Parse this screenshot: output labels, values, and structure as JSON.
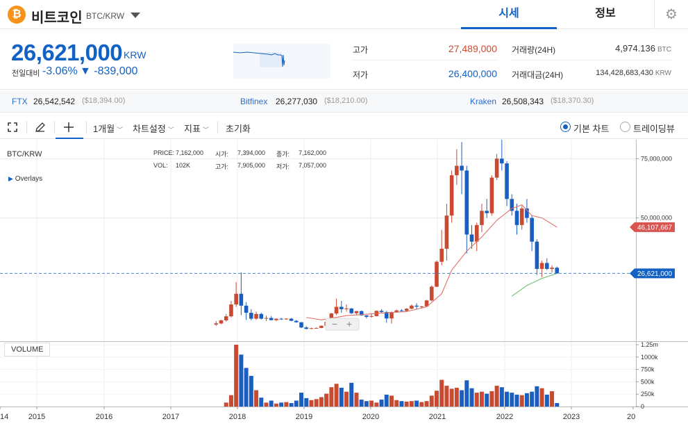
{
  "header": {
    "coin_symbol": "₿",
    "coin_name": "비트코인",
    "pair": "BTC/KRW",
    "tabs": [
      {
        "label": "시세",
        "active": true
      },
      {
        "label": "정보",
        "active": false
      }
    ],
    "settings_icon": "gear-icon"
  },
  "summary": {
    "price": "26,621,000",
    "unit": "KRW",
    "prev_label": "전일대비",
    "change_pct": "-3.06%",
    "change_amt": "▼ -839,000",
    "high_label": "고가",
    "high_value": "27,489,000",
    "low_label": "저가",
    "low_value": "26,400,000",
    "volume_label": "거래량(24H)",
    "volume_value": "4,974.136",
    "volume_unit": "BTC",
    "amount_label": "거래대금(24H)",
    "amount_value": "134,428,683,430",
    "amount_unit": "KRW",
    "colors": {
      "up": "#c84a31",
      "down": "#1261c4"
    }
  },
  "exchanges": [
    {
      "name": "FTX",
      "krw": "26,542,542",
      "usd": "($18,394.00)"
    },
    {
      "name": "Bitfinex",
      "krw": "26,277,030",
      "usd": "($18,210.00)"
    },
    {
      "name": "Kraken",
      "krw": "26,508,343",
      "usd": "($18,370.30)"
    }
  ],
  "toolbar": {
    "fullscreen_icon": "fullscreen-icon",
    "draw_icon": "pencil-icon",
    "crosshair_icon": "crosshair-icon",
    "interval": "1개월",
    "chart_settings": "차트설정",
    "indicators": "지표",
    "reset": "초기화",
    "chart_types": [
      {
        "label": "기본 차트",
        "selected": true
      },
      {
        "label": "트레이딩뷰",
        "selected": false
      }
    ]
  },
  "chart_info": {
    "symbol": "BTC/KRW",
    "overlays": "Overlays",
    "price_label": "PRICE:",
    "price": "7,162,000",
    "open_label": "시가:",
    "open": "7,394,000",
    "close_label": "종가:",
    "close": "7,162,000",
    "vol_label": "VOL:",
    "vol": "102K",
    "high_label": "고가:",
    "high": "7,905,000",
    "low_label": "저가:",
    "low": "7,057,000",
    "volume_panel": "VOLUME",
    "current_tag": "26,621,000",
    "ma_tag": "46,107,667"
  },
  "chart_data": {
    "type": "candlestick",
    "title": "BTC/KRW",
    "interval": "1개월",
    "x_ticks": [
      "14",
      "2015",
      "2016",
      "2017",
      "2018",
      "2019",
      "2020",
      "2021",
      "2022",
      "2023",
      "20"
    ],
    "y_ticks": [
      "75,000,000",
      "50,000,000"
    ],
    "vol_ticks": [
      "1.25m",
      "1000k",
      "750k",
      "500k",
      "250k",
      "0"
    ],
    "ylim": [
      -2000000,
      83000000
    ],
    "vol_ylim": [
      0,
      1250000
    ],
    "candles": [
      {
        "o": 5000000,
        "h": 6500000,
        "l": 4500000,
        "c": 5500000,
        "v": 0
      },
      {
        "o": 5500000,
        "h": 7000000,
        "l": 5200000,
        "c": 6800000,
        "v": 0
      },
      {
        "o": 6800000,
        "h": 9500000,
        "l": 6300000,
        "c": 8500000,
        "v": 80000
      },
      {
        "o": 8500000,
        "h": 15000000,
        "l": 8000000,
        "c": 13500000,
        "v": 230000
      },
      {
        "o": 13500000,
        "h": 23000000,
        "l": 12500000,
        "c": 18000000,
        "v": 1250000
      },
      {
        "o": 18000000,
        "h": 27000000,
        "l": 9000000,
        "c": 13000000,
        "v": 1050000
      },
      {
        "o": 13000000,
        "h": 14500000,
        "l": 7000000,
        "c": 10000000,
        "v": 780000
      },
      {
        "o": 10000000,
        "h": 11500000,
        "l": 6800000,
        "c": 7500000,
        "v": 620000
      },
      {
        "o": 7500000,
        "h": 10500000,
        "l": 7000000,
        "c": 9500000,
        "v": 330000
      },
      {
        "o": 9500000,
        "h": 10000000,
        "l": 7200000,
        "c": 7500000,
        "v": 180000
      },
      {
        "o": 7500000,
        "h": 8800000,
        "l": 6500000,
        "c": 7800000,
        "v": 80000
      },
      {
        "o": 7800000,
        "h": 8600000,
        "l": 6800000,
        "c": 6900000,
        "v": 120000
      },
      {
        "o": 6900000,
        "h": 7600000,
        "l": 6500000,
        "c": 7500000,
        "v": 60000
      },
      {
        "o": 7500000,
        "h": 7800000,
        "l": 7000000,
        "c": 7200000,
        "v": 80000
      },
      {
        "o": 7200000,
        "h": 7700000,
        "l": 7100000,
        "c": 7500000,
        "v": 90000
      },
      {
        "o": 7500000,
        "h": 7800000,
        "l": 6500000,
        "c": 6600000,
        "v": 70000
      },
      {
        "o": 6600000,
        "h": 6900000,
        "l": 5800000,
        "c": 6000000,
        "v": 120000
      },
      {
        "o": 6000000,
        "h": 6100000,
        "l": 3500000,
        "c": 3800000,
        "v": 280000
      },
      {
        "o": 3800000,
        "h": 4300000,
        "l": 3000000,
        "c": 3200000,
        "v": 170000
      },
      {
        "o": 3200000,
        "h": 3700000,
        "l": 3100000,
        "c": 3500000,
        "v": 130000
      },
      {
        "o": 3500000,
        "h": 3800000,
        "l": 3400000,
        "c": 3600000,
        "v": 150000
      },
      {
        "o": 3600000,
        "h": 4700000,
        "l": 3500000,
        "c": 4500000,
        "v": 190000
      },
      {
        "o": 4500000,
        "h": 6500000,
        "l": 4300000,
        "c": 6200000,
        "v": 260000
      },
      {
        "o": 6200000,
        "h": 10000000,
        "l": 6000000,
        "c": 9700000,
        "v": 390000
      },
      {
        "o": 9700000,
        "h": 16000000,
        "l": 9000000,
        "c": 12500000,
        "v": 460000
      },
      {
        "o": 12500000,
        "h": 15000000,
        "l": 10000000,
        "c": 11500000,
        "v": 380000
      },
      {
        "o": 11500000,
        "h": 13500000,
        "l": 10500000,
        "c": 11800000,
        "v": 300000
      },
      {
        "o": 11800000,
        "h": 12000000,
        "l": 9500000,
        "c": 9800000,
        "v": 480000
      },
      {
        "o": 9800000,
        "h": 10800000,
        "l": 9000000,
        "c": 10700000,
        "v": 280000
      },
      {
        "o": 10700000,
        "h": 10900000,
        "l": 8800000,
        "c": 8900000,
        "v": 140000
      },
      {
        "o": 8900000,
        "h": 9000000,
        "l": 7600000,
        "c": 8300000,
        "v": 110000
      },
      {
        "o": 8300000,
        "h": 9800000,
        "l": 8000000,
        "c": 8600000,
        "v": 120000
      },
      {
        "o": 8600000,
        "h": 11000000,
        "l": 8400000,
        "c": 10800000,
        "v": 80000
      },
      {
        "o": 10800000,
        "h": 11500000,
        "l": 9800000,
        "c": 10300000,
        "v": 140000
      },
      {
        "o": 10300000,
        "h": 10800000,
        "l": 5800000,
        "c": 7600000,
        "v": 240000
      },
      {
        "o": 7600000,
        "h": 10500000,
        "l": 5400000,
        "c": 10300000,
        "v": 220000
      },
      {
        "o": 10300000,
        "h": 11300000,
        "l": 10000000,
        "c": 11000000,
        "v": 130000
      },
      {
        "o": 11000000,
        "h": 11500000,
        "l": 10500000,
        "c": 10800000,
        "v": 110000
      },
      {
        "o": 10800000,
        "h": 12000000,
        "l": 10500000,
        "c": 11700000,
        "v": 100000
      },
      {
        "o": 11700000,
        "h": 13500000,
        "l": 11500000,
        "c": 13000000,
        "v": 110000
      },
      {
        "o": 13000000,
        "h": 14000000,
        "l": 11500000,
        "c": 12600000,
        "v": 120000
      },
      {
        "o": 12600000,
        "h": 12900000,
        "l": 11800000,
        "c": 12700000,
        "v": 90000
      },
      {
        "o": 12700000,
        "h": 15500000,
        "l": 12500000,
        "c": 15200000,
        "v": 110000
      },
      {
        "o": 15200000,
        "h": 21500000,
        "l": 14800000,
        "c": 21000000,
        "v": 220000
      },
      {
        "o": 21000000,
        "h": 32000000,
        "l": 20800000,
        "c": 31500000,
        "v": 320000
      },
      {
        "o": 31500000,
        "h": 45000000,
        "l": 30000000,
        "c": 37000000,
        "v": 540000
      },
      {
        "o": 37000000,
        "h": 56000000,
        "l": 32000000,
        "c": 51000000,
        "v": 420000
      },
      {
        "o": 51000000,
        "h": 70000000,
        "l": 48000000,
        "c": 68000000,
        "v": 360000
      },
      {
        "o": 68000000,
        "h": 79000000,
        "l": 64000000,
        "c": 72000000,
        "v": 380000
      },
      {
        "o": 72000000,
        "h": 82000000,
        "l": 60000000,
        "c": 70000000,
        "v": 330000
      },
      {
        "o": 70000000,
        "h": 72000000,
        "l": 35000000,
        "c": 43000000,
        "v": 530000
      },
      {
        "o": 43000000,
        "h": 47000000,
        "l": 37000000,
        "c": 40000000,
        "v": 370000
      },
      {
        "o": 40000000,
        "h": 48000000,
        "l": 36000000,
        "c": 47000000,
        "v": 280000
      },
      {
        "o": 47000000,
        "h": 56000000,
        "l": 44000000,
        "c": 53000000,
        "v": 300000
      },
      {
        "o": 53000000,
        "h": 58000000,
        "l": 50000000,
        "c": 52000000,
        "v": 260000
      },
      {
        "o": 52000000,
        "h": 68000000,
        "l": 51000000,
        "c": 67000000,
        "v": 310000
      },
      {
        "o": 67000000,
        "h": 77000000,
        "l": 66000000,
        "c": 75000000,
        "v": 420000
      },
      {
        "o": 75000000,
        "h": 83000000,
        "l": 70000000,
        "c": 73000000,
        "v": 390000
      },
      {
        "o": 73000000,
        "h": 74000000,
        "l": 55000000,
        "c": 58000000,
        "v": 300000
      },
      {
        "o": 58000000,
        "h": 60000000,
        "l": 51000000,
        "c": 53000000,
        "v": 280000
      },
      {
        "o": 53000000,
        "h": 56000000,
        "l": 43000000,
        "c": 47000000,
        "v": 240000
      },
      {
        "o": 47000000,
        "h": 55000000,
        "l": 45000000,
        "c": 54000000,
        "v": 230000
      },
      {
        "o": 54000000,
        "h": 58000000,
        "l": 48000000,
        "c": 50000000,
        "v": 270000
      },
      {
        "o": 50000000,
        "h": 51000000,
        "l": 36000000,
        "c": 40000000,
        "v": 300000
      },
      {
        "o": 40000000,
        "h": 41000000,
        "l": 26000000,
        "c": 28500000,
        "v": 410000
      },
      {
        "o": 28500000,
        "h": 32000000,
        "l": 25000000,
        "c": 31000000,
        "v": 370000
      },
      {
        "o": 31000000,
        "h": 33000000,
        "l": 28000000,
        "c": 28500000,
        "v": 240000
      },
      {
        "o": 28500000,
        "h": 30000000,
        "l": 27000000,
        "c": 29000000,
        "v": 310000
      },
      {
        "o": 29000000,
        "h": 29500000,
        "l": 26400000,
        "c": 26621000,
        "v": 70000
      }
    ],
    "ma_long": {
      "name": "",
      "color": "#6ac26a",
      "values": [
        {
          "i": 59,
          "v": 17000000
        },
        {
          "i": 62,
          "v": 21500000
        },
        {
          "i": 65,
          "v": 24500000
        },
        {
          "i": 68,
          "v": 26600000
        }
      ]
    },
    "ma_short": {
      "name": "",
      "color": "#e0706a",
      "values": [
        {
          "i": 18,
          "v": 8000000
        },
        {
          "i": 21,
          "v": 7000000
        },
        {
          "i": 26,
          "v": 8800000
        },
        {
          "i": 32,
          "v": 9700000
        },
        {
          "i": 38,
          "v": 10500000
        },
        {
          "i": 42,
          "v": 12500000
        },
        {
          "i": 45,
          "v": 18000000
        },
        {
          "i": 47,
          "v": 28000000
        },
        {
          "i": 50,
          "v": 36000000
        },
        {
          "i": 53,
          "v": 42000000
        },
        {
          "i": 56,
          "v": 49000000
        },
        {
          "i": 59,
          "v": 54000000
        },
        {
          "i": 61,
          "v": 55500000
        },
        {
          "i": 63,
          "v": 51000000
        },
        {
          "i": 65,
          "v": 50000000
        },
        {
          "i": 68,
          "v": 46107667
        }
      ]
    }
  }
}
